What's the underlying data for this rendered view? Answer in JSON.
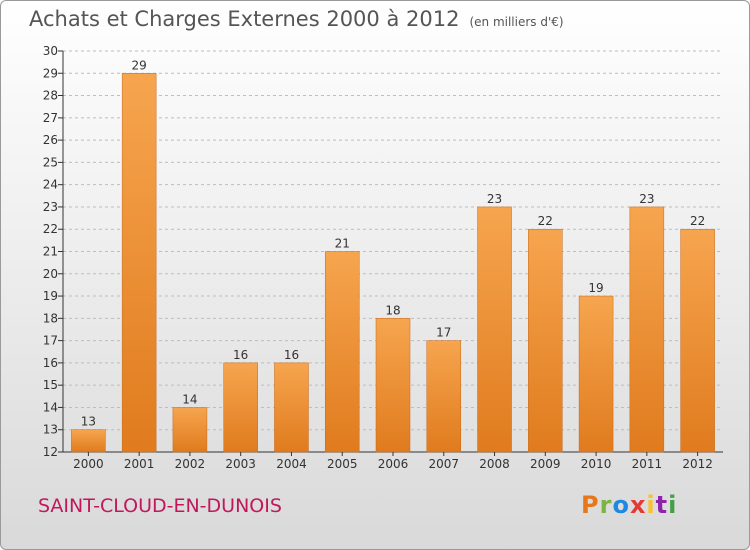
{
  "title": "Achats et Charges Externes 2000 à 2012",
  "subtitle": "(en milliers d'€)",
  "commune": "SAINT-CLOUD-EN-DUNOIS",
  "logo": {
    "text": "Proxiti",
    "colors": [
      "#e8761a",
      "#7cb342",
      "#1e88e5",
      "#e53935",
      "#fbc02d",
      "#8e24aa",
      "#43a047"
    ]
  },
  "colors": {
    "bar_top": "#f6a54f",
    "bar_bottom": "#e07b1e",
    "grid": "#bdbdbd",
    "text": "#333333"
  },
  "chart_data": {
    "type": "bar",
    "title": "Achats et Charges Externes 2000 à 2012",
    "subtitle": "(en milliers d'€)",
    "categories": [
      "2000",
      "2001",
      "2002",
      "2003",
      "2004",
      "2005",
      "2006",
      "2007",
      "2008",
      "2009",
      "2010",
      "2011",
      "2012"
    ],
    "values": [
      13,
      29,
      14,
      16,
      16,
      21,
      18,
      17,
      23,
      22,
      19,
      23,
      22
    ],
    "ylim": [
      12,
      30
    ],
    "yticks": [
      12,
      13,
      14,
      15,
      16,
      17,
      18,
      19,
      20,
      21,
      22,
      23,
      24,
      25,
      26,
      27,
      28,
      29,
      30
    ],
    "grid": true,
    "xlabel": "",
    "ylabel": ""
  }
}
